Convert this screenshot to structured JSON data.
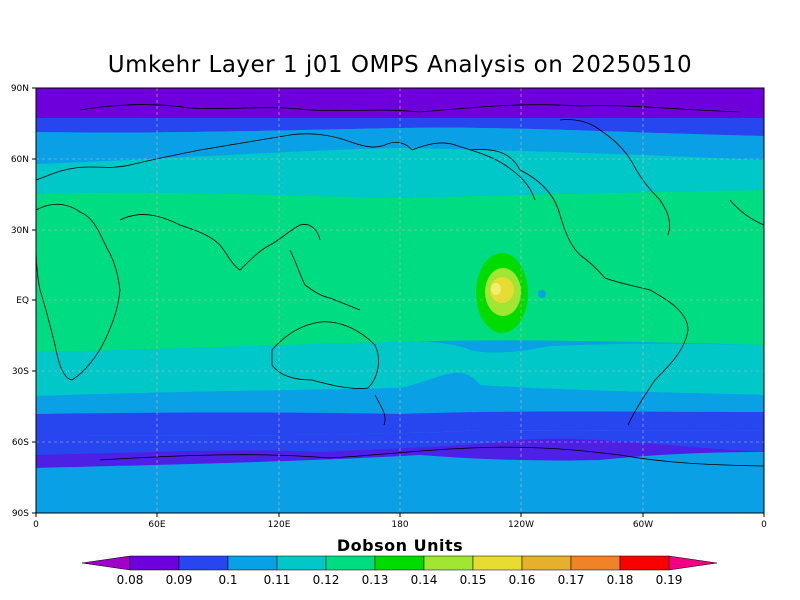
{
  "title": "Umkehr Layer 1 j01 OMPS Analysis on 20250510",
  "axes": {
    "lat_ticks": [
      "90N",
      "60N",
      "30N",
      "EQ",
      "30S",
      "60S",
      "90S"
    ],
    "lon_ticks": [
      "0",
      "60E",
      "120E",
      "180",
      "120W",
      "60W",
      "0"
    ]
  },
  "colorbar": {
    "title": "Dobson Units",
    "labels": [
      "0.08",
      "0.09",
      "0.1",
      "0.11",
      "0.12",
      "0.13",
      "0.14",
      "0.15",
      "0.16",
      "0.17",
      "0.18",
      "0.19"
    ],
    "colors": [
      "#a000c8",
      "#6e00dc",
      "#2846f0",
      "#0aa0e6",
      "#00c8c8",
      "#00dc82",
      "#00dc00",
      "#a0e632",
      "#e6dc32",
      "#e6af2d",
      "#f08228",
      "#fa0000",
      "#f00082"
    ]
  },
  "chart_data": {
    "type": "heatmap",
    "title": "Umkehr Layer 1 j01 OMPS Analysis on 20250510",
    "xlabel": "",
    "ylabel": "",
    "x_range": [
      0,
      360
    ],
    "y_range": [
      -90,
      90
    ],
    "units": "Dobson Units",
    "latitude_bands": [
      {
        "lat_min": 80,
        "lat_max": 90,
        "value": 0.09
      },
      {
        "lat_min": 70,
        "lat_max": 80,
        "value": 0.1
      },
      {
        "lat_min": 55,
        "lat_max": 70,
        "value": 0.11
      },
      {
        "lat_min": 42,
        "lat_max": 55,
        "value": 0.12
      },
      {
        "lat_min": -18,
        "lat_max": 42,
        "value": 0.13
      },
      {
        "lat_min": -30,
        "lat_max": -18,
        "value": 0.12
      },
      {
        "lat_min": -45,
        "lat_max": -30,
        "value": 0.11
      },
      {
        "lat_min": -55,
        "lat_max": -45,
        "value": 0.1
      },
      {
        "lat_min": -62,
        "lat_max": -55,
        "value": 0.09
      },
      {
        "lat_min": -90,
        "lat_max": -62,
        "value": 0.1
      }
    ],
    "max_feature": {
      "lon": 228,
      "lat": 2,
      "value": 0.16
    }
  }
}
